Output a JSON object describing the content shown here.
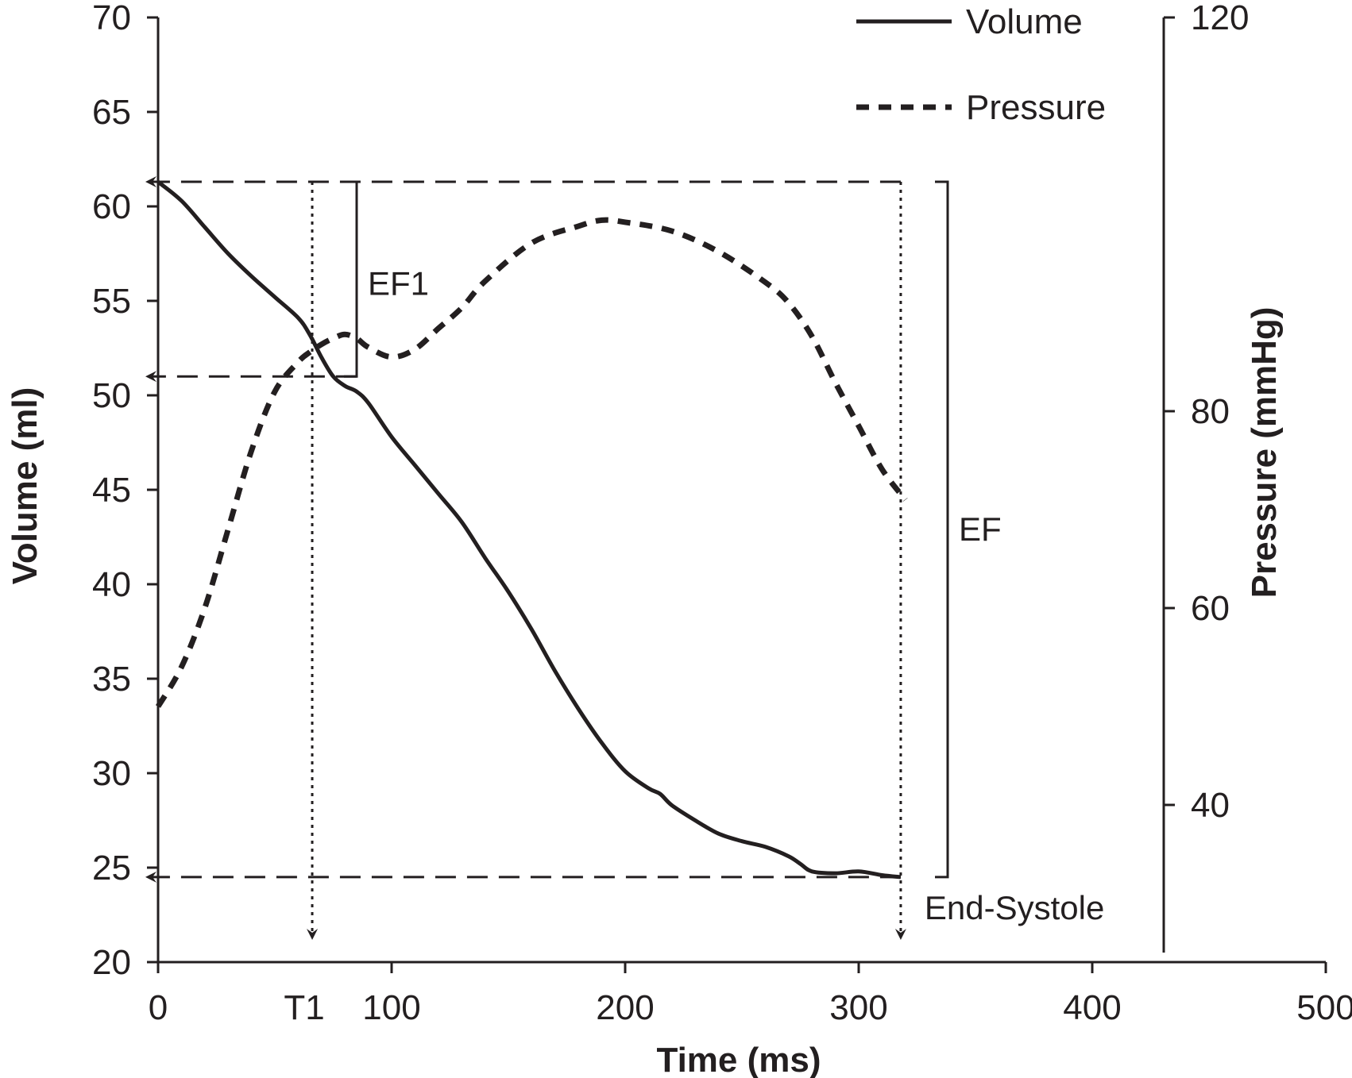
{
  "chart_data": {
    "type": "line",
    "xlabel": "Time (ms)",
    "ylabel": "Volume (ml)",
    "y2label": "Pressure (mmHg)",
    "xlim": [
      0,
      500
    ],
    "ylim": [
      20,
      70
    ],
    "y2lim": [
      25,
      120
    ],
    "x_ticks": [
      0,
      100,
      200,
      300,
      400,
      500
    ],
    "y_ticks": [
      20,
      25,
      30,
      35,
      40,
      45,
      50,
      55,
      60,
      65,
      70
    ],
    "y2_ticks": [
      40,
      60,
      80,
      120
    ],
    "grid": false,
    "legend_position": "top-right",
    "series": [
      {
        "name": "Volume",
        "axis": "left",
        "style": "solid",
        "color": "#231f20",
        "x": [
          0,
          10,
          20,
          30,
          40,
          50,
          60,
          65,
          70,
          75,
          80,
          85,
          90,
          100,
          110,
          120,
          130,
          140,
          150,
          160,
          170,
          180,
          190,
          200,
          210,
          215,
          220,
          230,
          240,
          250,
          260,
          270,
          275,
          280,
          290,
          300,
          310,
          318
        ],
        "y": [
          61.3,
          60.3,
          58.9,
          57.5,
          56.3,
          55.2,
          54.1,
          53.2,
          52.0,
          51.0,
          50.5,
          50.2,
          49.6,
          47.8,
          46.3,
          44.8,
          43.3,
          41.4,
          39.6,
          37.6,
          35.4,
          33.4,
          31.6,
          30.1,
          29.2,
          28.9,
          28.3,
          27.5,
          26.8,
          26.4,
          26.1,
          25.6,
          25.2,
          24.8,
          24.7,
          24.8,
          24.6,
          24.5
        ]
      },
      {
        "name": "Pressure",
        "axis": "right",
        "style": "dashed",
        "color": "#231f20",
        "x": [
          0,
          10,
          20,
          30,
          40,
          50,
          60,
          65,
          70,
          75,
          80,
          85,
          90,
          100,
          110,
          120,
          130,
          140,
          160,
          180,
          190,
          200,
          220,
          240,
          260,
          270,
          280,
          290,
          300,
          310,
          320
        ],
        "y": [
          50,
          54,
          60,
          68,
          76,
          82,
          85,
          86,
          86.8,
          87.4,
          87.8,
          87.4,
          86.5,
          85.5,
          86.3,
          88.4,
          90.5,
          93.2,
          97.1,
          98.8,
          99.4,
          99.2,
          98.3,
          96.2,
          93.1,
          91.0,
          87.6,
          82.9,
          78.5,
          74.1,
          71.0
        ]
      }
    ],
    "annotations": [
      {
        "text": "EF1",
        "type": "bracket",
        "y_range": [
          51,
          61.3
        ]
      },
      {
        "text": "EF",
        "type": "bracket",
        "y_range": [
          24.5,
          61.3
        ]
      },
      {
        "text": "T1",
        "type": "x-marker",
        "x": 66
      },
      {
        "text": "End-Systole",
        "type": "x-marker",
        "x": 318
      }
    ],
    "reference_levels": [
      61.3,
      51,
      24.5
    ]
  }
}
